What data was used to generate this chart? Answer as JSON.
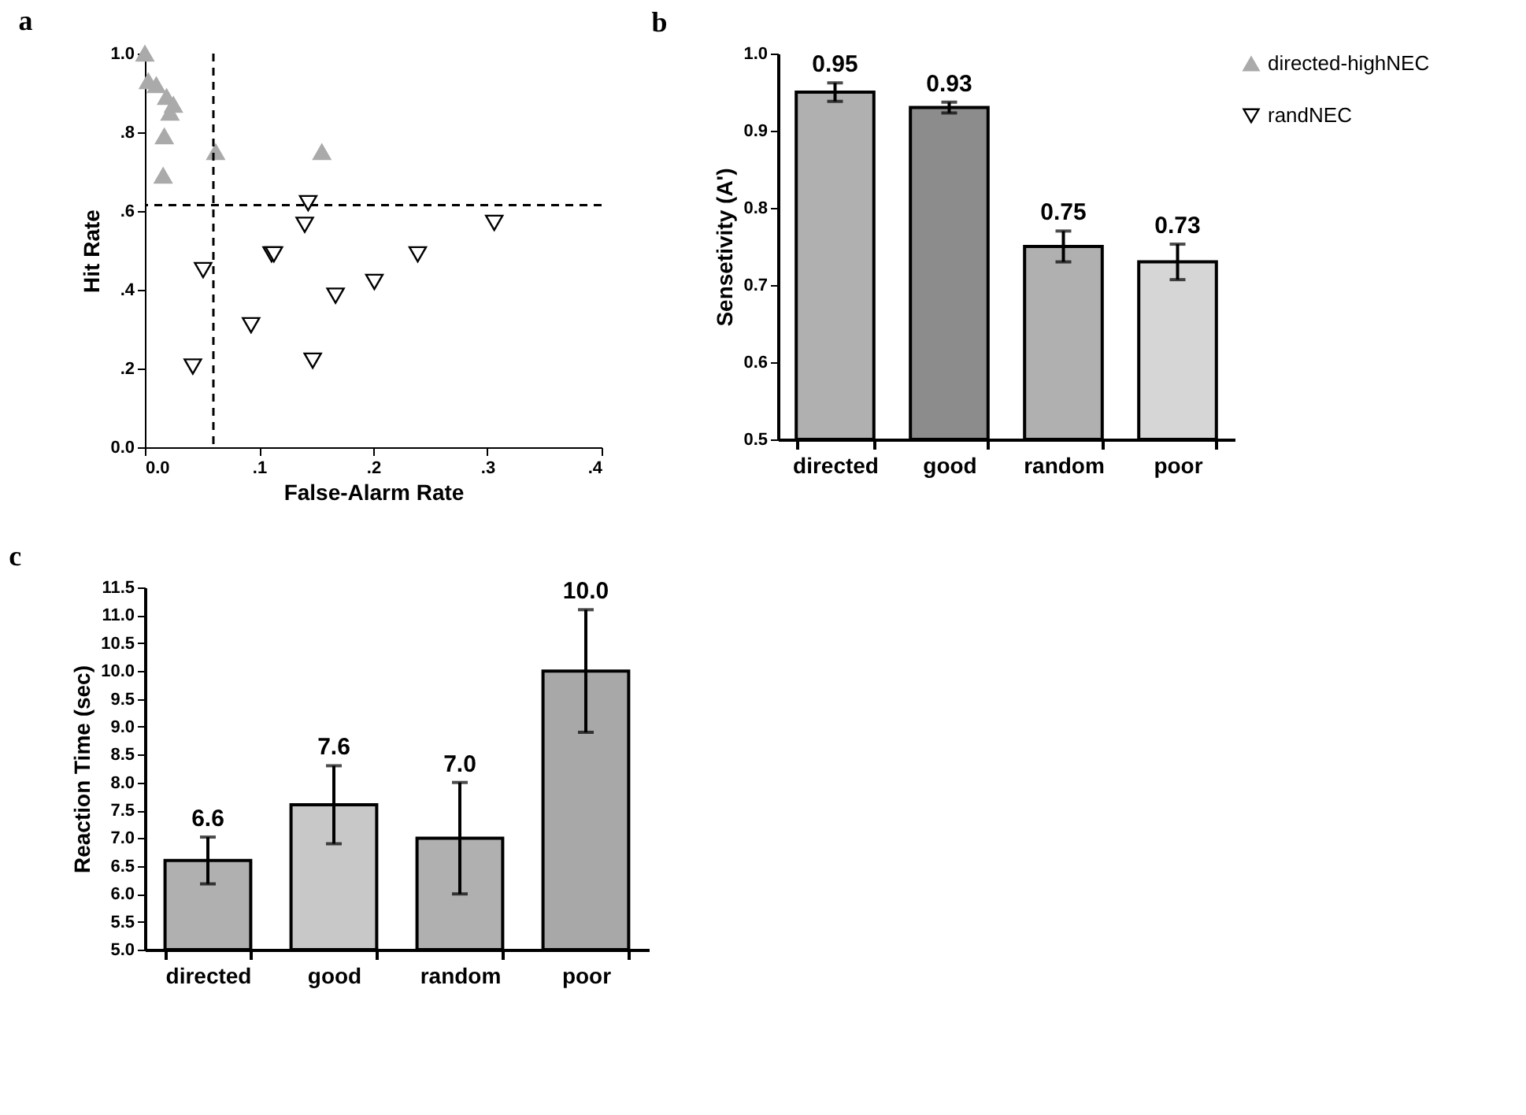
{
  "chart_data": [
    {
      "type": "scatter",
      "title": "a",
      "xlabel": "False-Alarm Rate",
      "ylabel": "Hit Rate",
      "xlim": [
        0,
        0.4
      ],
      "ylim": [
        0,
        1.0
      ],
      "xticks": [
        {
          "value": 0,
          "label": "0.0"
        },
        {
          "value": 0.1,
          "label": ".1"
        },
        {
          "value": 0.2,
          "label": ".2"
        },
        {
          "value": 0.3,
          "label": ".3"
        },
        {
          "value": 0.4,
          "label": ".4"
        }
      ],
      "yticks": [
        {
          "value": 0,
          "label": "0.0"
        },
        {
          "value": 0.2,
          "label": ".2"
        },
        {
          "value": 0.4,
          "label": ".4"
        },
        {
          "value": 0.6,
          "label": ".6"
        },
        {
          "value": 0.8,
          "label": ".8"
        },
        {
          "value": 1.0,
          "label": "1.0"
        }
      ],
      "legend": "right",
      "grid": false,
      "ref_lines": [
        {
          "axis": "x",
          "value": 0.06,
          "line_style": "dashed"
        },
        {
          "axis": "y",
          "value": 0.615,
          "line_style": "dashed"
        }
      ],
      "series": [
        {
          "name": "directed-highNEC",
          "color": "#aaaaaa",
          "marker": "triangle",
          "x": [
            0,
            0.003,
            0.01,
            0.019,
            0.025,
            0.022,
            0.017,
            0.062,
            0.155,
            0.016
          ],
          "values": [
            1.0,
            0.93,
            0.92,
            0.89,
            0.87,
            0.85,
            0.79,
            0.75,
            0.75,
            0.69
          ]
        },
        {
          "name": "randNEC",
          "color": "#000000",
          "marker": "triangle-down",
          "x": [
            0.143,
            0.14,
            0.306,
            0.111,
            0.113,
            0.239,
            0.051,
            0.201,
            0.167,
            0.093,
            0.147,
            0.042
          ],
          "values": [
            0.62,
            0.565,
            0.57,
            0.49,
            0.49,
            0.49,
            0.45,
            0.42,
            0.385,
            0.31,
            0.22,
            0.205
          ]
        }
      ]
    },
    {
      "type": "bar",
      "title": "b",
      "ylabel": "Sensetivity (A')",
      "categories": [
        "directed",
        "good",
        "random",
        "poor"
      ],
      "values": [
        0.95,
        0.93,
        0.75,
        0.73
      ],
      "errors": [
        0.012,
        0.007,
        0.02,
        0.023
      ],
      "colors": [
        "#b0b0b0",
        "#8c8c8c",
        "#b0b0b0",
        "#d6d6d6"
      ],
      "ylim": [
        0.5,
        1.0
      ],
      "yticks": [
        {
          "value": 0.5,
          "label": "0.5"
        },
        {
          "value": 0.6,
          "label": "0.6"
        },
        {
          "value": 0.7,
          "label": "0.7"
        },
        {
          "value": 0.8,
          "label": "0.8"
        },
        {
          "value": 0.9,
          "label": "0.9"
        },
        {
          "value": 1.0,
          "label": "1.0"
        }
      ],
      "data_labels": true,
      "grid": false
    },
    {
      "type": "bar",
      "title": "c",
      "ylabel": "Reaction Time (sec)",
      "categories": [
        "directed",
        "good",
        "random",
        "poor"
      ],
      "values": [
        6.6,
        7.6,
        7.0,
        10.0
      ],
      "errors": [
        0.42,
        0.7,
        1.0,
        1.1
      ],
      "colors": [
        "#b0b0b0",
        "#c8c8c8",
        "#b0b0b0",
        "#a8a8a8"
      ],
      "ylim": [
        5.0,
        11.5
      ],
      "yticks": [
        {
          "value": 5.0,
          "label": "5.0"
        },
        {
          "value": 5.5,
          "label": "5.5"
        },
        {
          "value": 6.0,
          "label": "6.0"
        },
        {
          "value": 6.5,
          "label": "6.5"
        },
        {
          "value": 7.0,
          "label": "7.0"
        },
        {
          "value": 7.5,
          "label": "7.5"
        },
        {
          "value": 8.0,
          "label": "8.0"
        },
        {
          "value": 8.5,
          "label": "8.5"
        },
        {
          "value": 9.0,
          "label": "9.0"
        },
        {
          "value": 9.5,
          "label": "9.5"
        },
        {
          "value": 10.0,
          "label": "10.0"
        },
        {
          "value": 10.5,
          "label": "10.5"
        },
        {
          "value": 11.0,
          "label": "11.0"
        },
        {
          "value": 11.5,
          "label": "11.5"
        }
      ],
      "data_labels": true,
      "value_labels": [
        "6.6",
        "7.6",
        "7.0",
        "10.0"
      ],
      "grid": false
    }
  ]
}
